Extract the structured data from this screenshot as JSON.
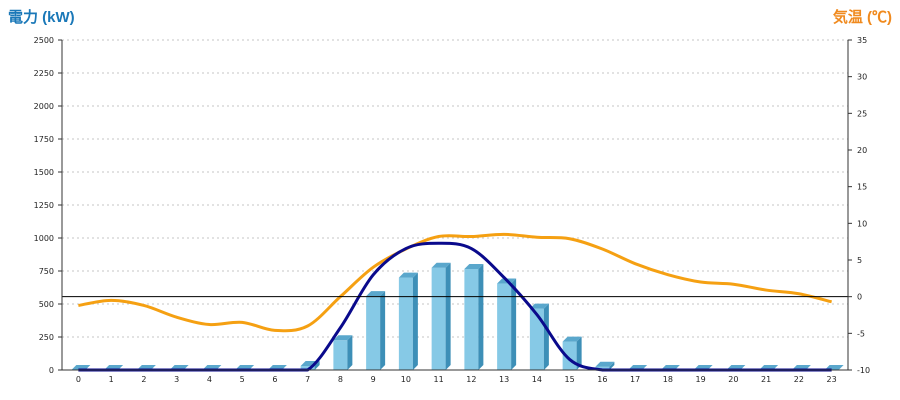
{
  "header": {
    "left_unit": "電力 (kW)",
    "right_unit": "気温 (℃)"
  },
  "colors": {
    "bar_face": "#86c9e6",
    "bar_side": "#3d8fb7",
    "bar_top": "#5aa7cc",
    "power_line": "#0a0a8c",
    "temp_line": "#f5a012",
    "left_axis_text": "#1a78b8",
    "right_axis_text": "#f08a1e"
  },
  "chart_data": {
    "type": "bar",
    "categories": [
      "0",
      "1",
      "2",
      "3",
      "4",
      "5",
      "6",
      "7",
      "8",
      "9",
      "10",
      "11",
      "12",
      "13",
      "14",
      "15",
      "16",
      "17",
      "18",
      "19",
      "20",
      "21",
      "22",
      "23"
    ],
    "left_axis": {
      "ylim": [
        0,
        2500
      ],
      "ticks": [
        0,
        250,
        500,
        750,
        1000,
        1250,
        1500,
        1750,
        2000,
        2250,
        2500
      ]
    },
    "right_axis": {
      "ylim": [
        -10,
        35
      ],
      "ticks": [
        -10,
        -5,
        0,
        5,
        10,
        15,
        20,
        25,
        30,
        35
      ]
    },
    "grid": true,
    "reference_line_right": 0,
    "series": [
      {
        "type": "bar3d",
        "axis": "left",
        "values": [
          0,
          0,
          0,
          0,
          0,
          0,
          0,
          30,
          225,
          560,
          700,
          775,
          765,
          655,
          465,
          215,
          25,
          0,
          0,
          0,
          0,
          0,
          0,
          0
        ]
      },
      {
        "type": "smooth-line",
        "axis": "left",
        "values": [
          0,
          0,
          0,
          0,
          0,
          0,
          0,
          0,
          320,
          720,
          920,
          960,
          920,
          700,
          420,
          80,
          0,
          0,
          0,
          0,
          0,
          0,
          0,
          0
        ]
      },
      {
        "type": "smooth-line",
        "axis": "right",
        "values": [
          -1.2,
          -0.5,
          -1.2,
          -2.8,
          -3.8,
          -3.5,
          -4.6,
          -4.0,
          0.0,
          4.0,
          6.5,
          8.2,
          8.2,
          8.5,
          8.1,
          7.9,
          6.5,
          4.5,
          3.0,
          2.0,
          1.7,
          0.9,
          0.4,
          -0.7
        ]
      }
    ]
  }
}
